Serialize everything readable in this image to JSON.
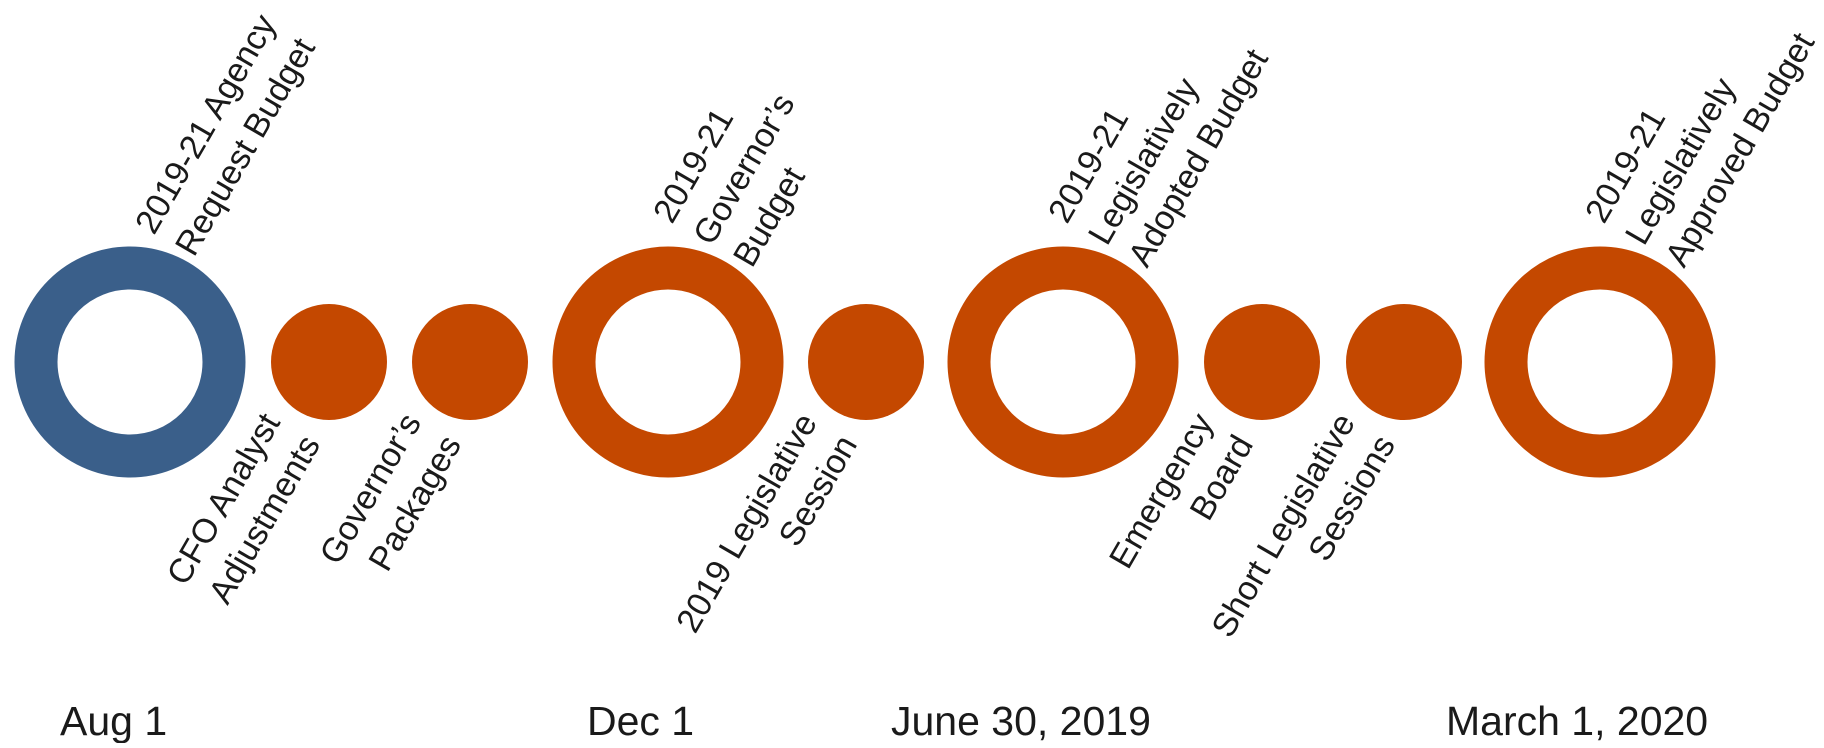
{
  "milestones": [
    {
      "lines": [
        "2019-21 Agency",
        "Request Budget"
      ],
      "color": "#3a5f8a"
    },
    {
      "lines": [
        "2019-21",
        "Governor’s",
        "Budget"
      ],
      "color": "#c44800"
    },
    {
      "lines": [
        "2019-21",
        "Legislatively",
        "Adopted Budget"
      ],
      "color": "#c44800"
    },
    {
      "lines": [
        "2019-21",
        "Legislatively",
        "Approved Budget"
      ],
      "color": "#c44800"
    }
  ],
  "events": [
    {
      "lines": [
        "CFO Analyst",
        "Adjustments"
      ]
    },
    {
      "lines": [
        "Governor’s",
        "Packages"
      ]
    },
    {
      "lines": [
        "2019 Legislative",
        "Session"
      ]
    },
    {
      "lines": [
        "Emergency",
        "Board"
      ]
    },
    {
      "lines": [
        "Short Legislative",
        "Sessions"
      ]
    }
  ],
  "dates": [
    "Aug 1",
    "Dec 1",
    "June 30, 2019",
    "March 1, 2020"
  ]
}
